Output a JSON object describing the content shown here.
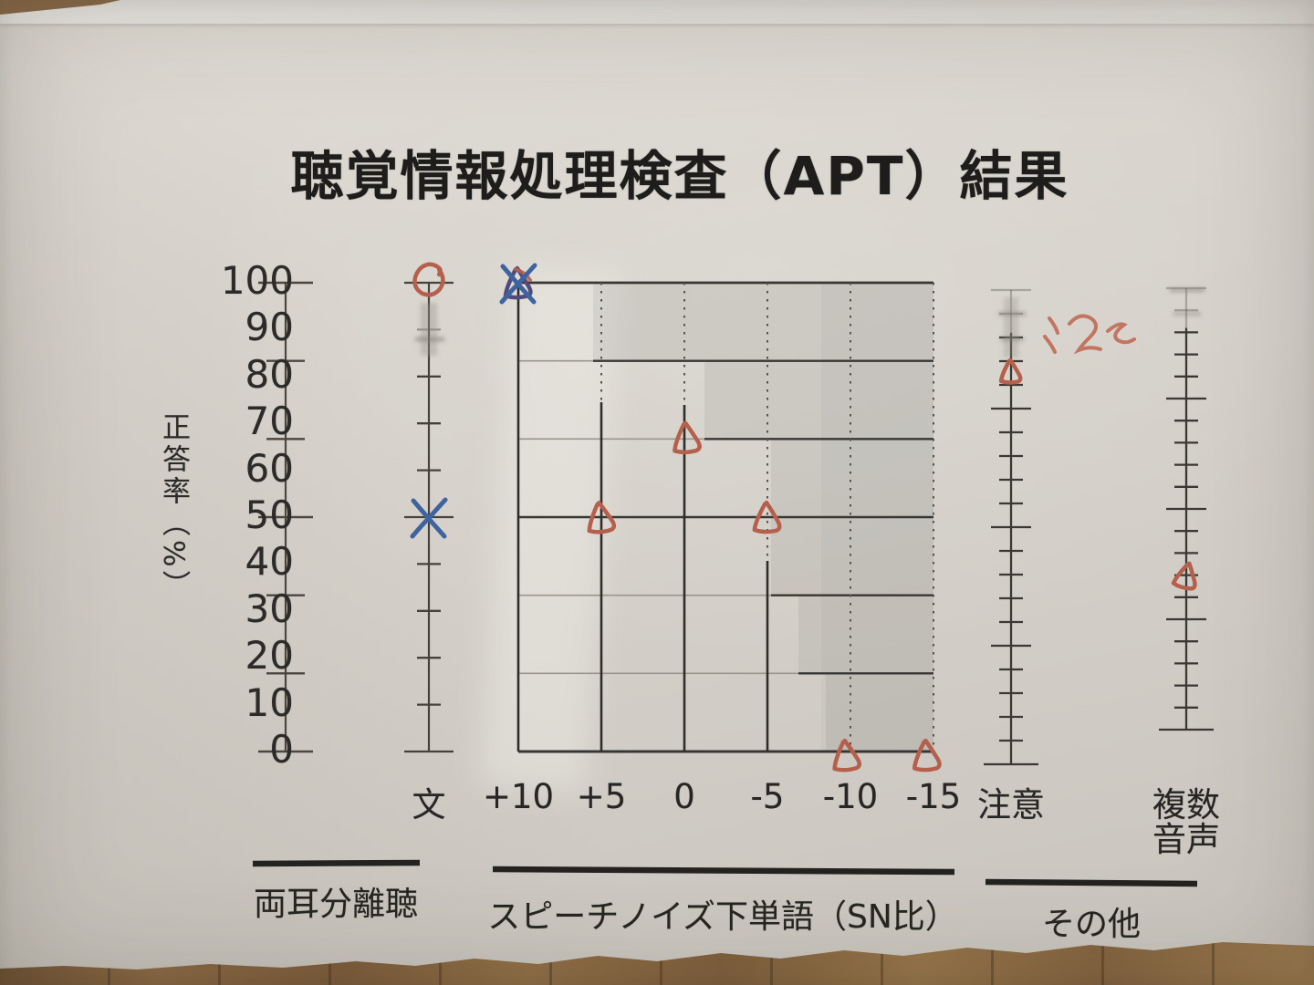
{
  "title": "聴覚情報処理検査（APT）結果",
  "x_axis": {
    "labels": [
      "文",
      "+10",
      "+5",
      "0",
      "-5",
      "-10",
      "-15",
      "注意"
    ],
    "multi_line_label": [
      "複数",
      "音声"
    ]
  },
  "chart_data": {
    "type": "scatter",
    "title": "聴覚情報処理検査（APT）結果",
    "ylabel": "正答率（%）",
    "ylim": [
      0,
      100
    ],
    "y_ticks": [
      100,
      90,
      80,
      70,
      60,
      50,
      40,
      30,
      20,
      10,
      0
    ],
    "categories": [
      "文",
      "+10",
      "+5",
      "0",
      "-5",
      "-10",
      "-15",
      "注意",
      "複数音声"
    ],
    "groups": [
      {
        "label": "両耳分離聴",
        "categories": [
          "文"
        ]
      },
      {
        "label": "スピーチノイズ下単語（SN比）",
        "categories": [
          "+10",
          "+5",
          "0",
          "-5",
          "-10",
          "-15"
        ]
      },
      {
        "label": "その他",
        "categories": [
          "注意",
          "複数音声"
        ]
      }
    ],
    "series": [
      {
        "name": "red-pen-marks",
        "color": "#b5604d",
        "points": [
          {
            "category": "文",
            "value": 100,
            "marker": "circle"
          },
          {
            "category": "+10",
            "value": 100,
            "marker": "triangle"
          },
          {
            "category": "+5",
            "value": 50,
            "marker": "triangle"
          },
          {
            "category": "0",
            "value": 67,
            "marker": "triangle"
          },
          {
            "category": "-5",
            "value": 50,
            "marker": "triangle"
          },
          {
            "category": "-10",
            "value": 0,
            "marker": "triangle"
          },
          {
            "category": "-15",
            "value": 0,
            "marker": "triangle"
          },
          {
            "category": "注意",
            "value": 83,
            "marker": "triangle"
          },
          {
            "category": "複数音声",
            "value": 35,
            "marker": "triangle"
          }
        ]
      },
      {
        "name": "blue-pen-marks",
        "color": "#3f639e",
        "points": [
          {
            "category": "文",
            "value": 50,
            "marker": "x"
          },
          {
            "category": "+10",
            "value": 100,
            "marker": "x"
          }
        ]
      }
    ],
    "annotations": [
      {
        "category": "注意",
        "color": "#c06a55",
        "text_guess": "2",
        "style": "handwritten-scribble"
      }
    ],
    "shaded_region": {
      "description": "灰色の階段状の網掛け（上側領域）",
      "steps": [
        {
          "from_category": "+5",
          "lower_bound": 83
        },
        {
          "from_category": "0",
          "lower_bound": 67
        },
        {
          "from_category": "-5",
          "lower_bound": 33
        },
        {
          "from_category": "-10",
          "lower_bound": 17
        },
        {
          "from_category": "-15",
          "lower_bound": 0
        }
      ]
    },
    "grid": {
      "horizontal_lines_pct": [
        100,
        83.3,
        66.7,
        50,
        33.3,
        16.7,
        0
      ],
      "sn_column_line_styles": {
        "+10": "solid",
        "+5": "dotted-top/solid-below-75",
        "0": "dotted-top/solid-below-75",
        "-5": "dotted-top/solid-below-40",
        "-10": "dotted",
        "-15": "dotted"
      }
    }
  }
}
